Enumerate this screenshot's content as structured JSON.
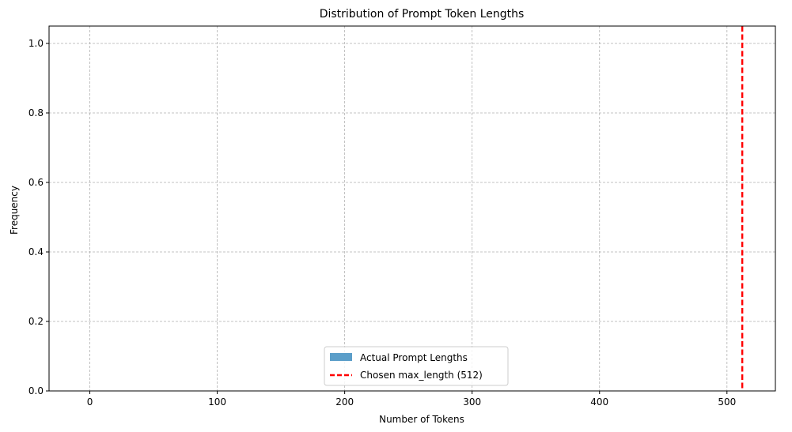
{
  "chart_data": {
    "type": "bar",
    "title": "Distribution of Prompt Token Lengths",
    "xlabel": "Number of Tokens",
    "ylabel": "Frequency",
    "xlim": [
      -32,
      538
    ],
    "ylim": [
      0,
      1.05
    ],
    "xticks": [
      0,
      100,
      200,
      300,
      400,
      500
    ],
    "yticks": [
      0.0,
      0.2,
      0.4,
      0.6,
      0.8,
      1.0
    ],
    "xtick_labels": [
      "0",
      "100",
      "200",
      "300",
      "400",
      "500"
    ],
    "ytick_labels": [
      "0.0",
      "0.2",
      "0.4",
      "0.6",
      "0.8",
      "1.0"
    ],
    "grid": true,
    "legend_position": "bottom-center",
    "series": [
      {
        "name": "Actual Prompt Lengths",
        "kind": "histogram",
        "values": [],
        "color": "#5b9ec9"
      }
    ],
    "reference_lines": [
      {
        "name": "Chosen max_length (512)",
        "x": 512,
        "color": "#ff0000",
        "style": "dashed"
      }
    ]
  }
}
